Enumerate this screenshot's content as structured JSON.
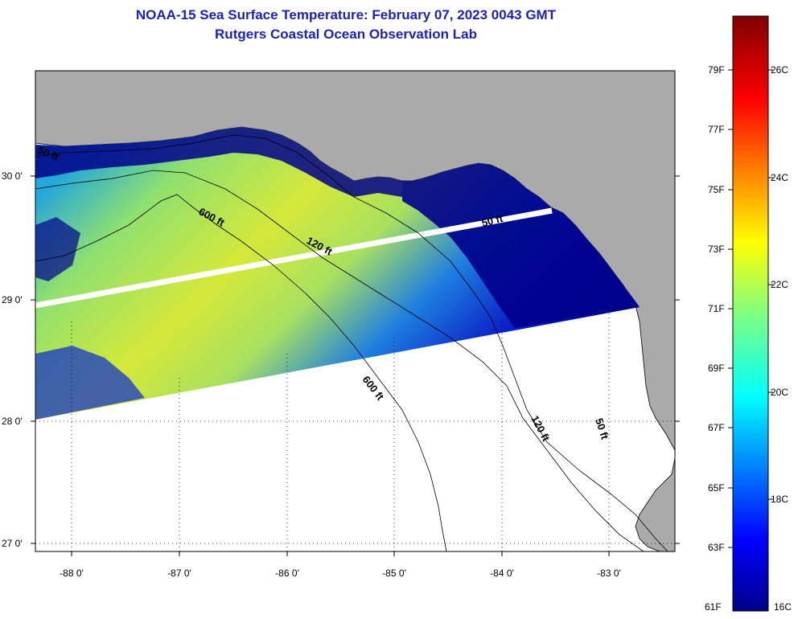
{
  "title": {
    "line1": "NOAA-15 Sea Surface Temperature:  February 07, 2023 0043 GMT",
    "line2": "Rutgers Coastal Ocean Observation Lab"
  },
  "map": {
    "lon_labels": [
      "-88 0'",
      "-87 0'",
      "-86 0'",
      "-85 0'",
      "-84 0'",
      "-83 0'"
    ],
    "lat_labels": [
      "30 0'",
      "29 0'",
      "28 0'",
      "27 0'"
    ],
    "contour_labels": {
      "c50_west": "50 ft",
      "c600_north": "600 ft",
      "c120_north": "120 ft",
      "c50_east": "50 ft",
      "c600_south": "600 ft",
      "c120_south": "120 ft",
      "c50_south": "50 ft"
    },
    "colors": {
      "land": "#aaaaaa",
      "cold": "#00007f",
      "warm": "#d4e83a",
      "cloud": "#ffffff"
    }
  },
  "colorbar": {
    "fahrenheit_labels": [
      "79F",
      "77F",
      "75F",
      "73F",
      "71F",
      "69F",
      "67F",
      "65F",
      "63F",
      "61F"
    ],
    "celsius_labels": [
      "26C",
      "24C",
      "22C",
      "20C",
      "18C",
      "16C"
    ],
    "range_f": [
      61,
      81
    ],
    "range_c": [
      16,
      27
    ]
  }
}
